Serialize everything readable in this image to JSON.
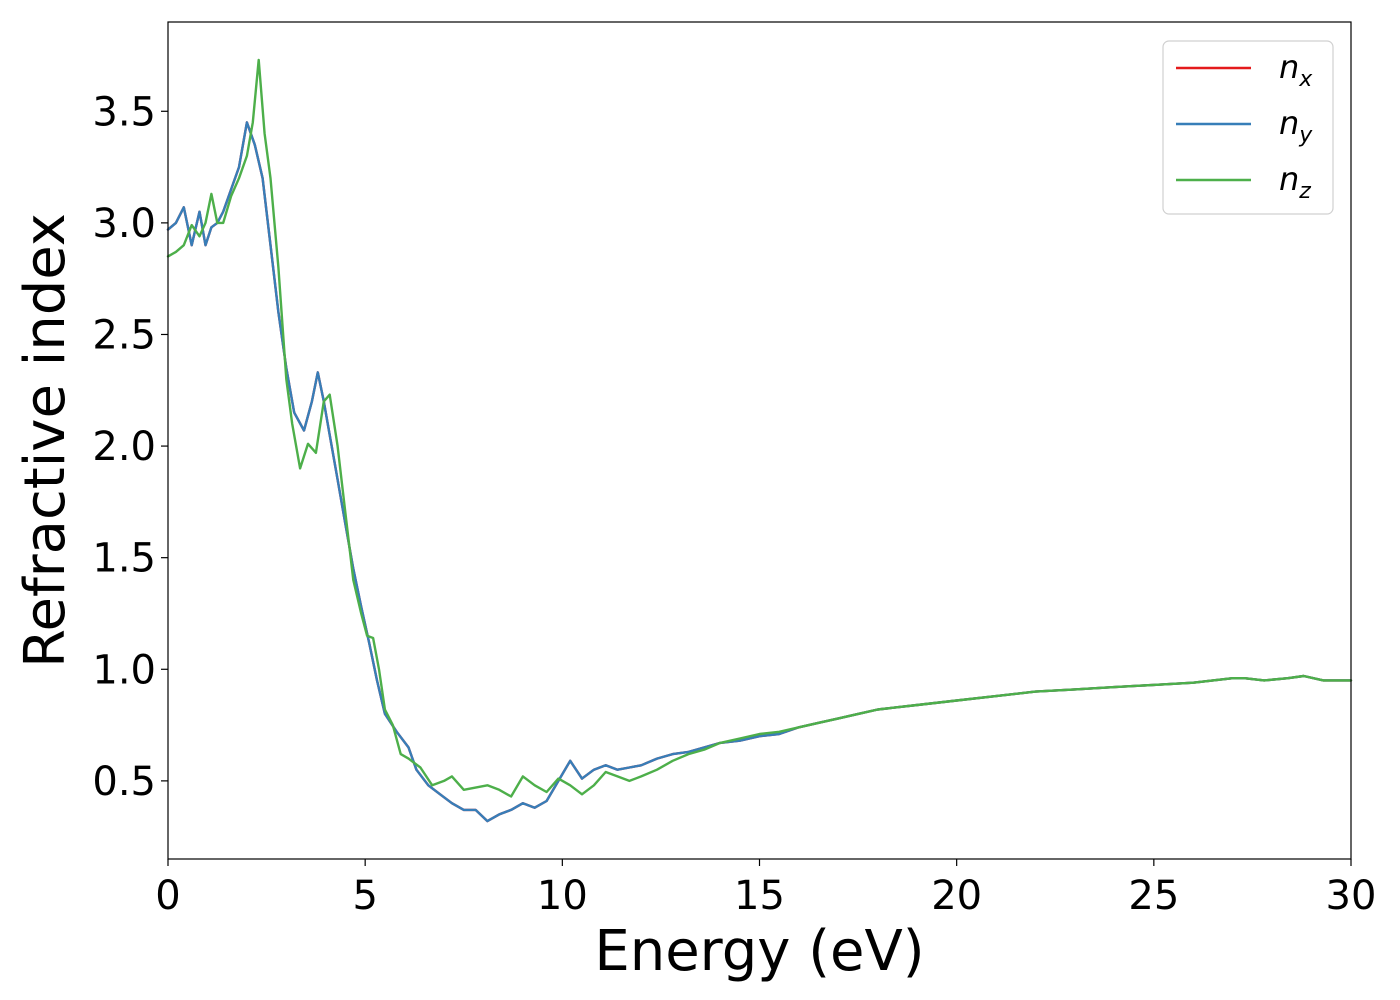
{
  "chart_data": {
    "type": "line",
    "xlabel": "Energy (eV)",
    "ylabel": "Refractive index",
    "xlim": [
      0,
      30
    ],
    "ylim": [
      0.15,
      3.9
    ],
    "xticks": [
      0,
      5,
      10,
      15,
      20,
      25,
      30
    ],
    "xtick_labels": [
      "0",
      "5",
      "10",
      "15",
      "20",
      "25",
      "30"
    ],
    "yticks": [
      0.5,
      1.0,
      1.5,
      2.0,
      2.5,
      3.0,
      3.5
    ],
    "ytick_labels": [
      "0.5",
      "1.0",
      "1.5",
      "2.0",
      "2.5",
      "3.0",
      "3.5"
    ],
    "grid": false,
    "legend_position": "top-right",
    "series": [
      {
        "name": "n_x",
        "label_base": "n",
        "label_sub": "x",
        "color": "#e41a1c",
        "x": [
          0,
          0.2,
          0.4,
          0.6,
          0.8,
          0.95,
          1.1,
          1.25,
          1.4,
          1.6,
          1.8,
          2.0,
          2.2,
          2.4,
          2.6,
          2.8,
          3.0,
          3.2,
          3.45,
          3.65,
          3.8,
          3.95,
          4.1,
          4.3,
          4.5,
          4.7,
          4.9,
          5.1,
          5.3,
          5.5,
          5.8,
          6.1,
          6.3,
          6.6,
          6.9,
          7.2,
          7.5,
          7.8,
          8.1,
          8.4,
          8.7,
          9.0,
          9.3,
          9.6,
          9.9,
          10.2,
          10.5,
          10.8,
          11.1,
          11.4,
          11.7,
          12.0,
          12.4,
          12.8,
          13.2,
          13.6,
          14.0,
          14.5,
          15.0,
          15.5,
          16.0,
          16.5,
          17.0,
          17.5,
          18.0,
          19.0,
          20.0,
          21.0,
          22.0,
          23.0,
          24.0,
          25.0,
          26.0,
          27.0,
          27.3,
          27.8,
          28.4,
          28.8,
          29.3,
          30.0
        ],
        "y": [
          2.97,
          3.0,
          3.07,
          2.9,
          3.05,
          2.9,
          2.98,
          3.0,
          3.05,
          3.15,
          3.25,
          3.45,
          3.35,
          3.2,
          2.9,
          2.6,
          2.35,
          2.15,
          2.07,
          2.2,
          2.33,
          2.2,
          2.05,
          1.85,
          1.65,
          1.45,
          1.28,
          1.12,
          0.95,
          0.8,
          0.72,
          0.65,
          0.55,
          0.48,
          0.44,
          0.4,
          0.37,
          0.37,
          0.32,
          0.35,
          0.37,
          0.4,
          0.38,
          0.41,
          0.5,
          0.59,
          0.51,
          0.55,
          0.57,
          0.55,
          0.56,
          0.57,
          0.6,
          0.62,
          0.63,
          0.65,
          0.67,
          0.68,
          0.7,
          0.71,
          0.74,
          0.76,
          0.78,
          0.8,
          0.82,
          0.84,
          0.86,
          0.88,
          0.9,
          0.91,
          0.92,
          0.93,
          0.94,
          0.96,
          0.96,
          0.95,
          0.96,
          0.97,
          0.95,
          0.95
        ]
      },
      {
        "name": "n_y",
        "label_base": "n",
        "label_sub": "y",
        "color": "#377eb8",
        "x": [
          0,
          0.2,
          0.4,
          0.6,
          0.8,
          0.95,
          1.1,
          1.25,
          1.4,
          1.6,
          1.8,
          2.0,
          2.2,
          2.4,
          2.6,
          2.8,
          3.0,
          3.2,
          3.45,
          3.65,
          3.8,
          3.95,
          4.1,
          4.3,
          4.5,
          4.7,
          4.9,
          5.1,
          5.3,
          5.5,
          5.8,
          6.1,
          6.3,
          6.6,
          6.9,
          7.2,
          7.5,
          7.8,
          8.1,
          8.4,
          8.7,
          9.0,
          9.3,
          9.6,
          9.9,
          10.2,
          10.5,
          10.8,
          11.1,
          11.4,
          11.7,
          12.0,
          12.4,
          12.8,
          13.2,
          13.6,
          14.0,
          14.5,
          15.0,
          15.5,
          16.0,
          16.5,
          17.0,
          17.5,
          18.0,
          19.0,
          20.0,
          21.0,
          22.0,
          23.0,
          24.0,
          25.0,
          26.0,
          27.0,
          27.3,
          27.8,
          28.4,
          28.8,
          29.3,
          30.0
        ],
        "y": [
          2.97,
          3.0,
          3.07,
          2.9,
          3.05,
          2.9,
          2.98,
          3.0,
          3.05,
          3.15,
          3.25,
          3.45,
          3.35,
          3.2,
          2.9,
          2.6,
          2.35,
          2.15,
          2.07,
          2.2,
          2.33,
          2.2,
          2.05,
          1.85,
          1.65,
          1.45,
          1.28,
          1.12,
          0.95,
          0.8,
          0.72,
          0.65,
          0.55,
          0.48,
          0.44,
          0.4,
          0.37,
          0.37,
          0.32,
          0.35,
          0.37,
          0.4,
          0.38,
          0.41,
          0.5,
          0.59,
          0.51,
          0.55,
          0.57,
          0.55,
          0.56,
          0.57,
          0.6,
          0.62,
          0.63,
          0.65,
          0.67,
          0.68,
          0.7,
          0.71,
          0.74,
          0.76,
          0.78,
          0.8,
          0.82,
          0.84,
          0.86,
          0.88,
          0.9,
          0.91,
          0.92,
          0.93,
          0.94,
          0.96,
          0.96,
          0.95,
          0.96,
          0.97,
          0.95,
          0.95
        ]
      },
      {
        "name": "n_z",
        "label_base": "n",
        "label_sub": "z",
        "color": "#4daf4a",
        "x": [
          0,
          0.2,
          0.4,
          0.6,
          0.8,
          0.95,
          1.1,
          1.25,
          1.4,
          1.6,
          1.8,
          2.0,
          2.15,
          2.3,
          2.45,
          2.6,
          2.8,
          3.0,
          3.15,
          3.35,
          3.55,
          3.75,
          3.95,
          4.1,
          4.3,
          4.5,
          4.7,
          4.9,
          5.05,
          5.2,
          5.35,
          5.5,
          5.7,
          5.9,
          6.1,
          6.4,
          6.7,
          7.0,
          7.2,
          7.5,
          7.8,
          8.1,
          8.4,
          8.7,
          9.0,
          9.3,
          9.6,
          9.9,
          10.2,
          10.5,
          10.8,
          11.1,
          11.4,
          11.7,
          12.0,
          12.4,
          12.8,
          13.2,
          13.6,
          14.0,
          14.5,
          15.0,
          15.5,
          16.0,
          16.5,
          17.0,
          17.5,
          18.0,
          19.0,
          20.0,
          21.0,
          22.0,
          23.0,
          24.0,
          25.0,
          26.0,
          27.0,
          27.3,
          27.8,
          28.4,
          28.8,
          29.3,
          30.0
        ],
        "y": [
          2.85,
          2.87,
          2.9,
          2.99,
          2.94,
          3.0,
          3.13,
          3.0,
          3.0,
          3.12,
          3.2,
          3.3,
          3.45,
          3.73,
          3.4,
          3.2,
          2.8,
          2.3,
          2.1,
          1.9,
          2.01,
          1.97,
          2.2,
          2.23,
          2.0,
          1.7,
          1.4,
          1.25,
          1.15,
          1.14,
          1.0,
          0.82,
          0.75,
          0.62,
          0.6,
          0.56,
          0.48,
          0.5,
          0.52,
          0.46,
          0.47,
          0.48,
          0.46,
          0.43,
          0.52,
          0.48,
          0.45,
          0.51,
          0.48,
          0.44,
          0.48,
          0.54,
          0.52,
          0.5,
          0.52,
          0.55,
          0.59,
          0.62,
          0.64,
          0.67,
          0.69,
          0.71,
          0.72,
          0.74,
          0.76,
          0.78,
          0.8,
          0.82,
          0.84,
          0.86,
          0.88,
          0.9,
          0.91,
          0.92,
          0.93,
          0.94,
          0.96,
          0.96,
          0.95,
          0.96,
          0.97,
          0.95,
          0.95
        ]
      }
    ]
  }
}
